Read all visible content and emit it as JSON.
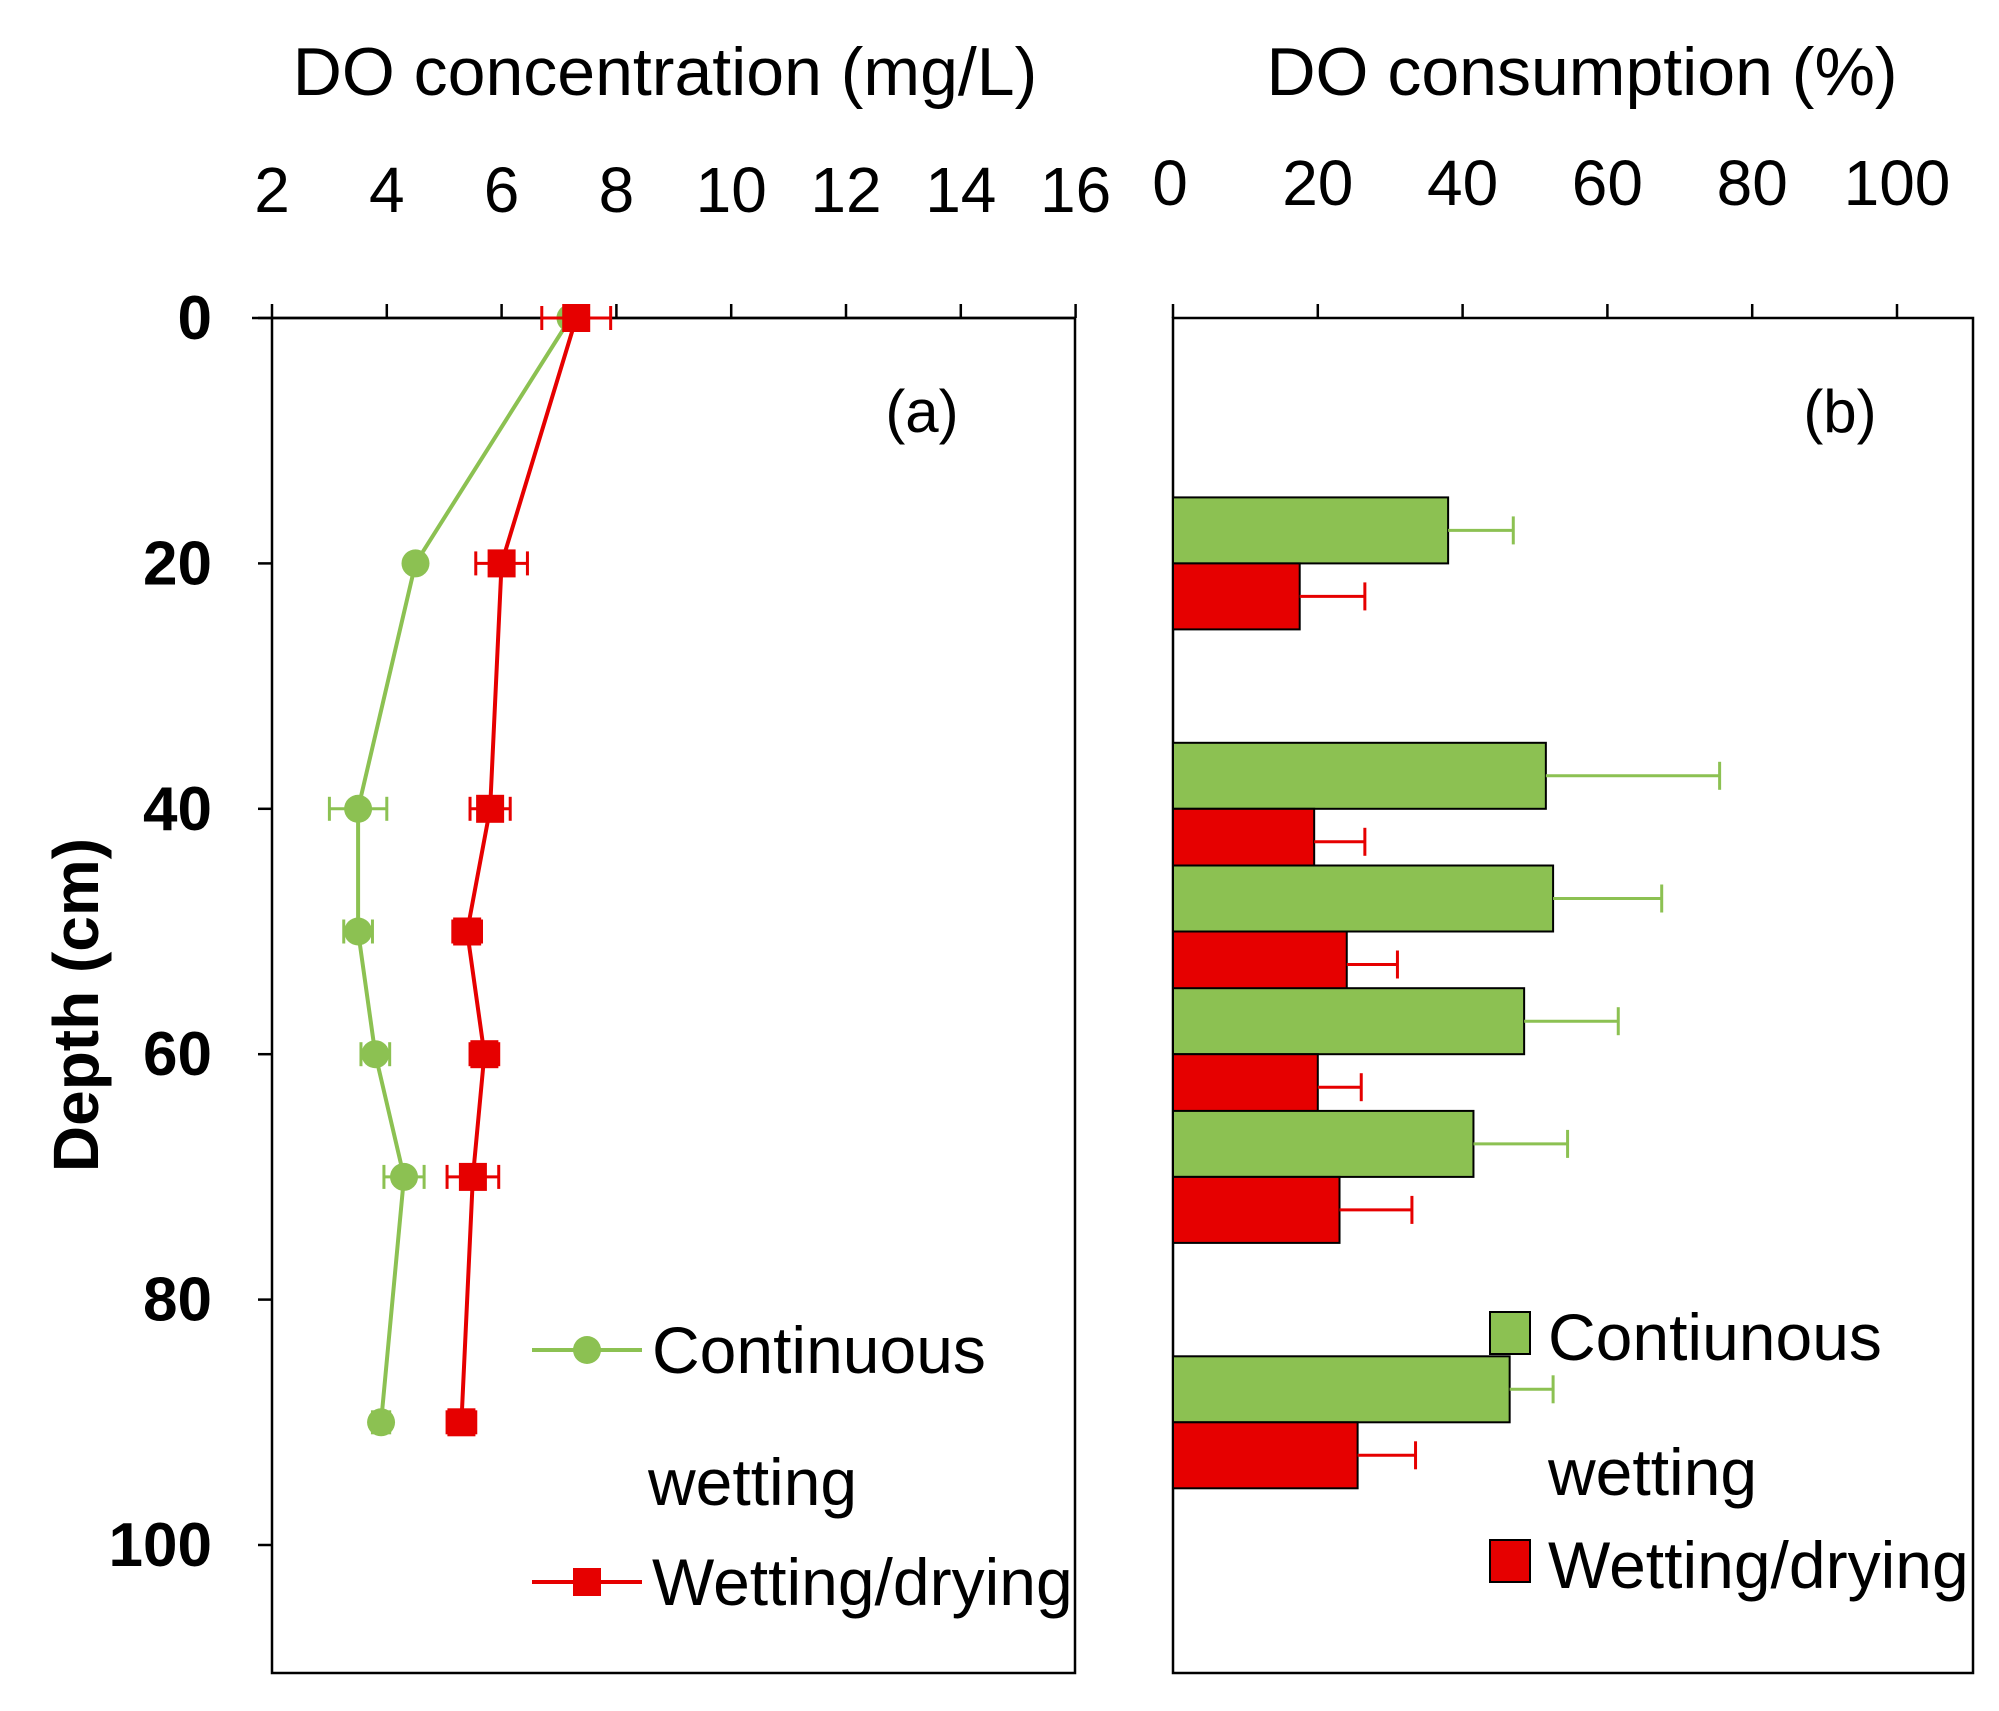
{
  "chart_data": [
    {
      "type": "line",
      "panel_label": "(a)",
      "title": "DO concentration (mg/L)",
      "xlabel": "DO concentration (mg/L)",
      "ylabel": "Depth (cm)",
      "xlim": [
        2,
        16
      ],
      "ylim": [
        0,
        110
      ],
      "x_ticks": [
        "2",
        "4",
        "6",
        "8",
        "10",
        "12",
        "14",
        "16"
      ],
      "y_ticks": [
        "0",
        "20",
        "40",
        "60",
        "80",
        "100"
      ],
      "x_axis_position": "top",
      "y_inverted": true,
      "series": [
        {
          "name": "Continuous wetting",
          "legend_line1": "Continuous",
          "legend_line2": "wetting",
          "color": "#8cc152",
          "marker": "circle",
          "depth": [
            0,
            20,
            40,
            50,
            60,
            70,
            90
          ],
          "values": [
            7.2,
            4.5,
            3.5,
            3.5,
            3.8,
            4.3,
            3.9
          ],
          "x_error": [
            0.0,
            0.1,
            0.5,
            0.25,
            0.25,
            0.35,
            0.15
          ]
        },
        {
          "name": "Wetting/drying",
          "legend_line1": "Wetting/drying",
          "color": "#e60000",
          "marker": "square",
          "depth": [
            0,
            20,
            40,
            50,
            60,
            70,
            90
          ],
          "values": [
            7.3,
            6.0,
            5.8,
            5.4,
            5.7,
            5.5,
            5.3
          ],
          "x_error": [
            0.6,
            0.45,
            0.35,
            0.25,
            0.25,
            0.45,
            0.25
          ]
        }
      ],
      "legend_position": "bottom-right"
    },
    {
      "type": "bar",
      "orientation": "horizontal",
      "panel_label": "(b)",
      "title": "DO consumption (%)",
      "xlabel": "DO consumption (%)",
      "xlim": [
        0,
        110
      ],
      "x_ticks": [
        "0",
        "20",
        "40",
        "60",
        "80",
        "100"
      ],
      "x_axis_position": "top",
      "y_inverted": true,
      "categories": [
        "20",
        "40",
        "50",
        "60",
        "70",
        "90"
      ],
      "series": [
        {
          "name": "Contiunous wetting",
          "legend_line1": "Contiunous",
          "legend_line2": "wetting",
          "color": "#8cc152",
          "values": [
            38,
            51.5,
            52.5,
            48.5,
            41.5,
            46.5
          ],
          "errors": [
            9,
            24,
            15,
            13,
            13,
            6
          ]
        },
        {
          "name": "Wetting/drying",
          "legend_line1": "Wetting/drying",
          "color": "#e60000",
          "values": [
            17.5,
            19.5,
            24,
            20,
            23,
            25.5
          ],
          "errors": [
            9,
            7,
            7,
            6,
            10,
            8
          ]
        }
      ],
      "legend_position": "bottom-right"
    }
  ]
}
